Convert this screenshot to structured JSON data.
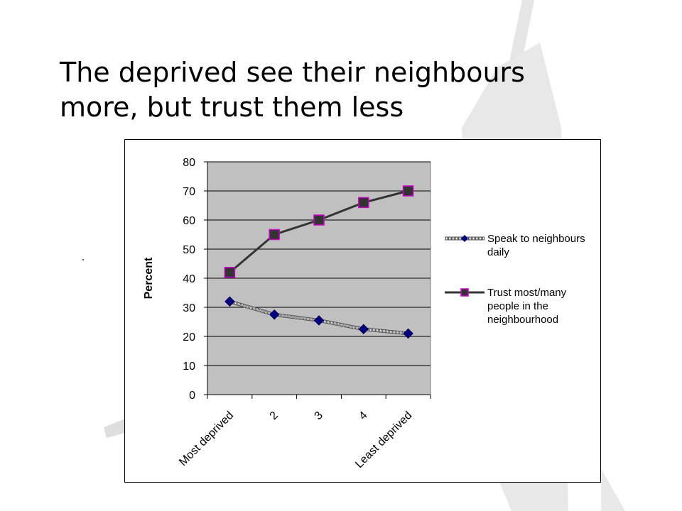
{
  "slide": {
    "title_lines": [
      "The deprived see their neighbours",
      "more, but trust them less"
    ]
  },
  "chart_data": {
    "type": "line",
    "title": "",
    "xlabel": "",
    "ylabel": "Percent",
    "categories": [
      "Most deprived",
      "2",
      "3",
      "4",
      "Least deprived"
    ],
    "ylim": [
      0,
      80
    ],
    "yticks": [
      0,
      10,
      20,
      30,
      40,
      50,
      60,
      70,
      80
    ],
    "grid": true,
    "legend_position": "right",
    "plot_background": "#c0c0c0",
    "series": [
      {
        "name": "Speak to neighbours daily",
        "legend_lines": [
          "Speak to neighbours",
          "daily"
        ],
        "values": [
          32,
          27.5,
          25.5,
          22.5,
          21
        ],
        "line_color": "#a0a0a0",
        "marker": "diamond",
        "marker_color": "#000080"
      },
      {
        "name": "Trust most/many people in the neighbourhood",
        "legend_lines": [
          "Trust most/many",
          "people in the",
          "neighbourhood"
        ],
        "values": [
          42,
          55,
          60,
          66,
          70
        ],
        "line_color": "#333333",
        "marker": "square",
        "marker_color": "#333333",
        "marker_edge": "#cc00cc"
      }
    ]
  }
}
